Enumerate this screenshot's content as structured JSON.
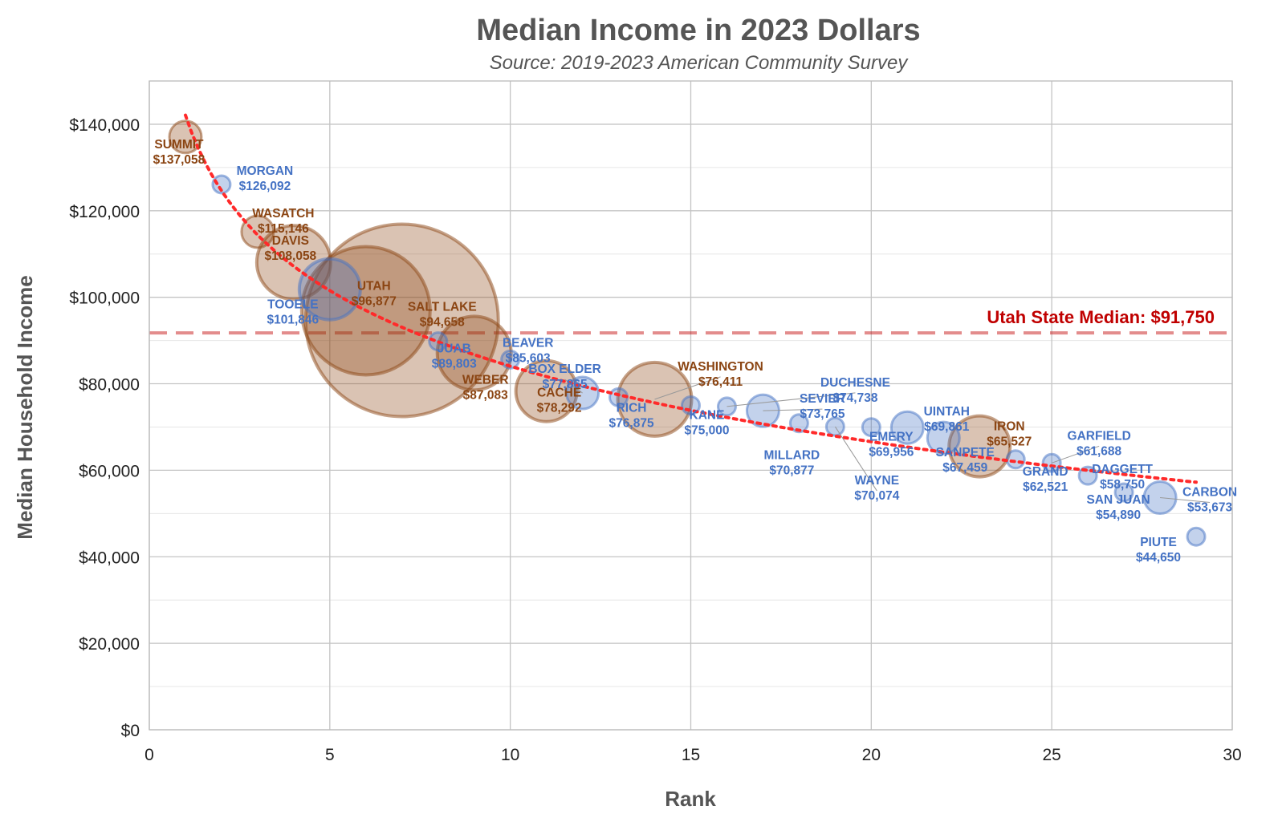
{
  "chart_data": {
    "type": "scatter",
    "title": "Median Income in 2023 Dollars",
    "subtitle": "Source: 2019-2023 American Community Survey",
    "xlabel": "Rank",
    "ylabel": "Median Household Income",
    "xlim": [
      0,
      30
    ],
    "ylim": [
      0,
      150000
    ],
    "x_ticks": [
      0,
      5,
      10,
      15,
      20,
      25,
      30
    ],
    "y_ticks": [
      0,
      20000,
      40000,
      60000,
      80000,
      100000,
      120000,
      140000
    ],
    "y_tick_labels": [
      "$0",
      "$20,000",
      "$40,000",
      "$60,000",
      "$80,000",
      "$100,000",
      "$120,000",
      "$140,000"
    ],
    "grid": true,
    "reference_line": {
      "value": 91750,
      "label": "Utah State Median: $91,750",
      "color": "#c00000"
    },
    "trend_line": {
      "style": "dotted",
      "color": "#ff2a2a"
    },
    "colors": {
      "above_median": "#8B4513",
      "below_median": "#4472C4",
      "reference": "#c00000",
      "trend": "#ff2a2a"
    },
    "points": [
      {
        "rank": 1,
        "county": "SUMMIT",
        "value": 137058,
        "value_label": "$137,058",
        "group": "above",
        "size": "small"
      },
      {
        "rank": 2,
        "county": "MORGAN",
        "value": 126092,
        "value_label": "$126,092",
        "group": "below",
        "size": "tiny"
      },
      {
        "rank": 3,
        "county": "WASATCH",
        "value": 115146,
        "value_label": "$115,146",
        "group": "above",
        "size": "small"
      },
      {
        "rank": 4,
        "county": "DAVIS",
        "value": 108058,
        "value_label": "$108,058",
        "group": "above",
        "size": "large"
      },
      {
        "rank": 5,
        "county": "TOOELE",
        "value": 101846,
        "value_label": "$101,846",
        "group": "below",
        "size": "medium"
      },
      {
        "rank": 6,
        "county": "UTAH",
        "value": 96877,
        "value_label": "$96,877",
        "group": "above",
        "size": "xlarge"
      },
      {
        "rank": 7,
        "county": "SALT LAKE",
        "value": 94658,
        "value_label": "$94,658",
        "group": "above",
        "size": "xxlarge"
      },
      {
        "rank": 8,
        "county": "JUAB",
        "value": 89803,
        "value_label": "$89,803",
        "group": "below",
        "size": "tiny"
      },
      {
        "rank": 9,
        "county": "WEBER",
        "value": 87083,
        "value_label": "$87,083",
        "group": "above",
        "size": "large"
      },
      {
        "rank": 10,
        "county": "BEAVER",
        "value": 85603,
        "value_label": "$85,603",
        "group": "below",
        "size": "tiny"
      },
      {
        "rank": 11,
        "county": "CACHE",
        "value": 78292,
        "value_label": "$78,292",
        "group": "above",
        "size": "medium"
      },
      {
        "rank": 12,
        "county": "BOX ELDER",
        "value": 77865,
        "value_label": "$77,865",
        "group": "below",
        "size": "small"
      },
      {
        "rank": 13,
        "county": "RICH",
        "value": 76875,
        "value_label": "$76,875",
        "group": "below",
        "size": "tiny"
      },
      {
        "rank": 14,
        "county": "WASHINGTON",
        "value": 76411,
        "value_label": "$76,411",
        "group": "above",
        "size": "large"
      },
      {
        "rank": 15,
        "county": "KANE",
        "value": 75000,
        "value_label": "$75,000",
        "group": "below",
        "size": "tiny"
      },
      {
        "rank": 16,
        "county": "DUCHESNE",
        "value": 74738,
        "value_label": "$74,738",
        "group": "below",
        "size": "tiny"
      },
      {
        "rank": 17,
        "county": "SEVIER",
        "value": 73765,
        "value_label": "$73,765",
        "group": "below",
        "size": "small"
      },
      {
        "rank": 18,
        "county": "MILLARD",
        "value": 70877,
        "value_label": "$70,877",
        "group": "below",
        "size": "tiny"
      },
      {
        "rank": 19,
        "county": "WAYNE",
        "value": 70074,
        "value_label": "$70,074",
        "group": "below",
        "size": "tiny"
      },
      {
        "rank": 20,
        "county": "EMERY",
        "value": 69956,
        "value_label": "$69,956",
        "group": "below",
        "size": "tiny"
      },
      {
        "rank": 21,
        "county": "UINTAH",
        "value": 69861,
        "value_label": "$69,861",
        "group": "below",
        "size": "small"
      },
      {
        "rank": 22,
        "county": "SANPETE",
        "value": 67459,
        "value_label": "$67,459",
        "group": "below",
        "size": "small"
      },
      {
        "rank": 23,
        "county": "IRON",
        "value": 65527,
        "value_label": "$65,527",
        "group": "above",
        "size": "medium"
      },
      {
        "rank": 24,
        "county": "GRAND",
        "value": 62521,
        "value_label": "$62,521",
        "group": "below",
        "size": "tiny"
      },
      {
        "rank": 25,
        "county": "GARFIELD",
        "value": 61688,
        "value_label": "$61,688",
        "group": "below",
        "size": "tiny"
      },
      {
        "rank": 26,
        "county": "DAGGETT",
        "value": 58750,
        "value_label": "$58,750",
        "group": "below",
        "size": "tiny"
      },
      {
        "rank": 27,
        "county": "SAN JUAN",
        "value": 54890,
        "value_label": "$54,890",
        "group": "below",
        "size": "tiny"
      },
      {
        "rank": 28,
        "county": "CARBON",
        "value": 53673,
        "value_label": "$53,673",
        "group": "below",
        "size": "small"
      },
      {
        "rank": 29,
        "county": "PIUTE",
        "value": 44650,
        "value_label": "$44,650",
        "group": "below",
        "size": "tiny"
      }
    ]
  }
}
